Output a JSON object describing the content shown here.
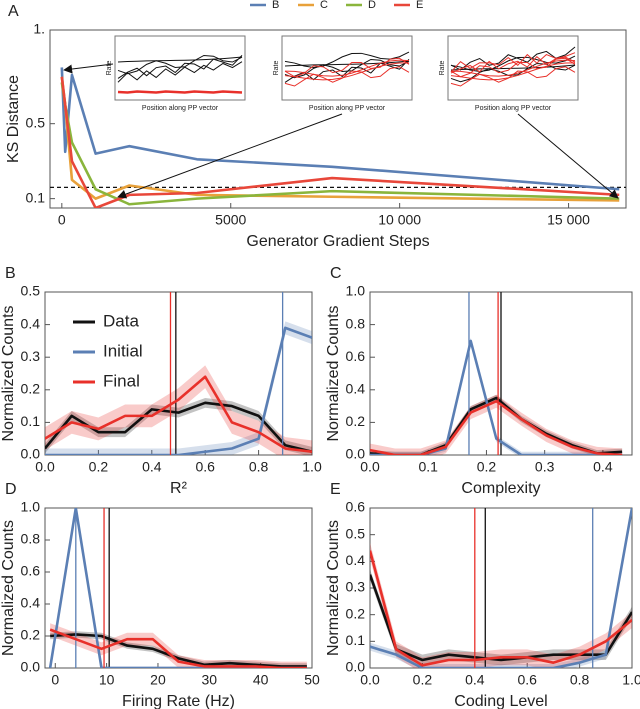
{
  "chart_data": [
    {
      "type": "line",
      "panel": "A",
      "ylabel": "KS Distance",
      "xlabel": "Generator Gradient Steps",
      "legend": "top",
      "x": [
        0,
        100,
        300,
        1000,
        2000,
        4000,
        8000,
        16500
      ],
      "series": [
        {
          "name": "B",
          "color": "#5b7fb4",
          "values": [
            0.8,
            0.35,
            0.76,
            0.34,
            0.38,
            0.31,
            0.27,
            0.15
          ]
        },
        {
          "name": "C",
          "color": "#e8a13a",
          "values": [
            0.75,
            0.6,
            0.2,
            0.1,
            0.17,
            0.12,
            0.11,
            0.09
          ]
        },
        {
          "name": "D",
          "color": "#8ab53c",
          "values": [
            0.72,
            0.6,
            0.4,
            0.15,
            0.07,
            0.1,
            0.14,
            0.1
          ]
        },
        {
          "name": "E",
          "color": "#e8473a",
          "values": [
            0.75,
            0.6,
            0.3,
            0.05,
            0.12,
            0.13,
            0.21,
            0.12
          ]
        }
      ],
      "reference_line": 0.16,
      "insets": [
        {
          "ylabel": "Rate",
          "xlabel": "Position along PP vector"
        },
        {
          "ylabel": "Rate",
          "xlabel": "Position along PP vector"
        },
        {
          "ylabel": "Rate",
          "xlabel": "Position along PP vector"
        }
      ],
      "xlim": [
        -350,
        16700
      ],
      "xticks": [
        0,
        5000,
        {
          "value": 10000,
          "label": "10 000"
        },
        {
          "value": 15000,
          "label": "15 000"
        }
      ],
      "ylim": [
        0.05,
        1.0
      ],
      "yticks": [
        0.1,
        0.5,
        {
          "value": 1,
          "label": "1."
        }
      ]
    },
    {
      "type": "line",
      "panel": "B",
      "ylabel": "Normalized Counts",
      "xlabel": "R²",
      "legend": "upper left",
      "x": [
        0,
        0.1,
        0.2,
        0.3,
        0.4,
        0.5,
        0.6,
        0.7,
        0.8,
        0.9,
        1.0
      ],
      "series": [
        {
          "name": "Data",
          "color": "#111111",
          "error": 0.015,
          "mean": 0.49,
          "values": [
            0.02,
            0.12,
            0.07,
            0.07,
            0.14,
            0.13,
            0.16,
            0.15,
            0.12,
            0.03,
            0.01
          ]
        },
        {
          "name": "Initial",
          "color": "#5b7fb4",
          "error": 0.02,
          "mean": 0.89,
          "values": [
            0,
            0,
            0,
            0,
            0,
            0,
            0.01,
            0.02,
            0.05,
            0.39,
            0.36
          ]
        },
        {
          "name": "Final",
          "color": "#e8302a",
          "error": 0.035,
          "mean": 0.47,
          "values": [
            0.05,
            0.1,
            0.08,
            0.12,
            0.12,
            0.17,
            0.24,
            0.1,
            0.07,
            0.02,
            0.01
          ]
        }
      ],
      "xlim": [
        0,
        1
      ],
      "xticks": [
        {
          "value": 0,
          "label": "0.0"
        },
        0.2,
        0.4,
        0.6,
        0.8,
        {
          "value": 1,
          "label": "1.0"
        }
      ],
      "ylim": [
        0,
        0.5
      ],
      "yticks": [
        {
          "value": 0,
          "label": "0.0"
        },
        0.1,
        0.2,
        0.3,
        0.4,
        0.5
      ]
    },
    {
      "type": "line",
      "panel": "C",
      "ylabel": "Normalized Counts",
      "xlabel": "Complexity",
      "x": [
        0,
        0.043,
        0.087,
        0.13,
        0.173,
        0.217,
        0.26,
        0.303,
        0.347,
        0.39,
        0.433
      ],
      "series": [
        {
          "name": "Data",
          "color": "#111111",
          "error": 0.02,
          "mean": 0.225,
          "values": [
            0.01,
            0,
            0,
            0.06,
            0.28,
            0.35,
            0.22,
            0.13,
            0.06,
            0.01,
            0.02
          ]
        },
        {
          "name": "Initial",
          "color": "#5b7fb4",
          "error": 0.02,
          "mean": 0.17,
          "values": [
            0,
            0,
            0,
            0.04,
            0.7,
            0.1,
            0,
            0,
            0,
            0,
            0
          ]
        },
        {
          "name": "Final",
          "color": "#e8302a",
          "error": 0.04,
          "mean": 0.22,
          "values": [
            0.03,
            0,
            0,
            0.05,
            0.26,
            0.33,
            0.22,
            0.12,
            0.05,
            0.01,
            0
          ]
        }
      ],
      "xlim": [
        0,
        0.45
      ],
      "xticks": [
        {
          "value": 0,
          "label": "0.0"
        },
        0.1,
        0.2,
        0.3,
        0.4
      ],
      "ylim": [
        0,
        1
      ],
      "yticks": [
        {
          "value": 0,
          "label": "0.0"
        },
        0.2,
        0.4,
        0.6,
        0.8,
        {
          "value": 1,
          "label": "1.0"
        }
      ]
    },
    {
      "type": "line",
      "panel": "D",
      "ylabel": "Normalized Counts",
      "xlabel": "Firing Rate (Hz)",
      "x": [
        -1,
        4,
        9,
        14,
        19,
        24,
        29,
        34,
        39,
        44,
        49
      ],
      "series": [
        {
          "name": "Data",
          "color": "#111111",
          "error": 0.02,
          "mean": 10.5,
          "values": [
            0.2,
            0.21,
            0.2,
            0.14,
            0.12,
            0.06,
            0.02,
            0.03,
            0.02,
            0.01,
            0.01
          ]
        },
        {
          "name": "Initial",
          "color": "#5b7fb4",
          "error": 0.01,
          "mean": 4,
          "values": [
            0,
            1.0,
            0,
            0,
            0,
            0,
            0,
            0,
            0,
            0,
            0
          ]
        },
        {
          "name": "Final",
          "color": "#e8302a",
          "error": 0.04,
          "mean": 9.5,
          "values": [
            0.24,
            0.18,
            0.12,
            0.18,
            0.18,
            0.04,
            0.01,
            0.01,
            0.01,
            0,
            0
          ]
        }
      ],
      "xlim": [
        -2,
        50
      ],
      "xticks": [
        0,
        10,
        20,
        30,
        40,
        50
      ],
      "ylim": [
        0,
        1
      ],
      "yticks": [
        {
          "value": 0,
          "label": "0.0"
        },
        0.2,
        0.4,
        0.6,
        0.8,
        {
          "value": 1,
          "label": "1.0"
        }
      ]
    },
    {
      "type": "line",
      "panel": "E",
      "ylabel": "Normalized Counts",
      "xlabel": "Coding Level",
      "x": [
        0,
        0.1,
        0.2,
        0.3,
        0.4,
        0.5,
        0.6,
        0.7,
        0.8,
        0.9,
        1.0
      ],
      "series": [
        {
          "name": "Data",
          "color": "#111111",
          "error": 0.02,
          "mean": 0.44,
          "values": [
            0.35,
            0.07,
            0.03,
            0.05,
            0.04,
            0.03,
            0.04,
            0.05,
            0.05,
            0.05,
            0.21
          ]
        },
        {
          "name": "Initial",
          "color": "#5b7fb4",
          "error": 0.015,
          "mean": 0.85,
          "values": [
            0.08,
            0.05,
            0,
            0,
            0,
            0,
            0,
            0,
            0.02,
            0.05,
            0.6
          ]
        },
        {
          "name": "Final",
          "color": "#e8302a",
          "error": 0.03,
          "mean": 0.4,
          "values": [
            0.44,
            0.07,
            0.01,
            0.03,
            0.03,
            0.04,
            0.04,
            0.02,
            0.05,
            0.1,
            0.18
          ]
        }
      ],
      "xlim": [
        0,
        1
      ],
      "xticks": [
        {
          "value": 0,
          "label": "0.0"
        },
        0.2,
        0.4,
        0.6,
        0.8,
        {
          "value": 1,
          "label": "1.0"
        }
      ],
      "ylim": [
        0,
        0.6
      ],
      "yticks": [
        {
          "value": 0,
          "label": "0.0"
        },
        0.1,
        0.2,
        0.3,
        0.4,
        0.5,
        0.6
      ]
    }
  ]
}
